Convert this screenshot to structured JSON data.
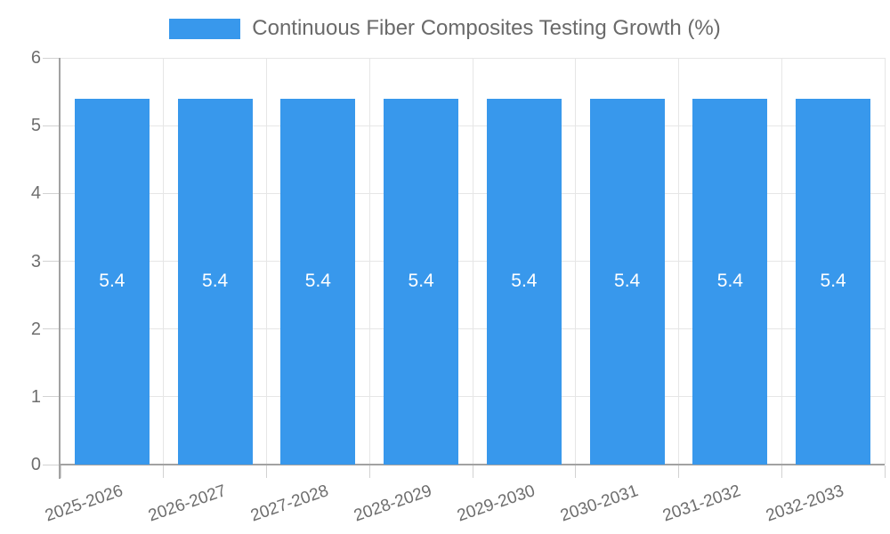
{
  "legend": {
    "position": "top",
    "label": "Continuous Fiber Composites Testing Growth (%)"
  },
  "colors": {
    "background": "#ffffff",
    "bar": "#3898ec",
    "bar_label": "#ffffff",
    "title_text": "#6a6a6a",
    "axis_text": "#6e6e6e",
    "grid": "#e6e6e6",
    "tick": "#d2d2d2",
    "axis_line": "#a2a2a2"
  },
  "chart_data": {
    "type": "bar",
    "title": "Continuous Fiber Composites Testing Growth (%)",
    "categories": [
      "2025-2026",
      "2026-2027",
      "2027-2028",
      "2028-2029",
      "2029-2030",
      "2030-2031",
      "2031-2032",
      "2032-2033"
    ],
    "values": [
      5.4,
      5.4,
      5.4,
      5.4,
      5.4,
      5.4,
      5.4,
      5.4
    ],
    "value_labels": [
      "5.4",
      "5.4",
      "5.4",
      "5.4",
      "5.4",
      "5.4",
      "5.4",
      "5.4"
    ],
    "xlabel": "",
    "ylabel": "",
    "ylim": [
      0,
      6
    ],
    "yticks": [
      0,
      1,
      2,
      3,
      4,
      5,
      6
    ],
    "grid": true,
    "legend_position": "top",
    "bar_color": "#3898ec",
    "bar_label_color": "#ffffff",
    "x_label_rotation_deg": -19
  }
}
